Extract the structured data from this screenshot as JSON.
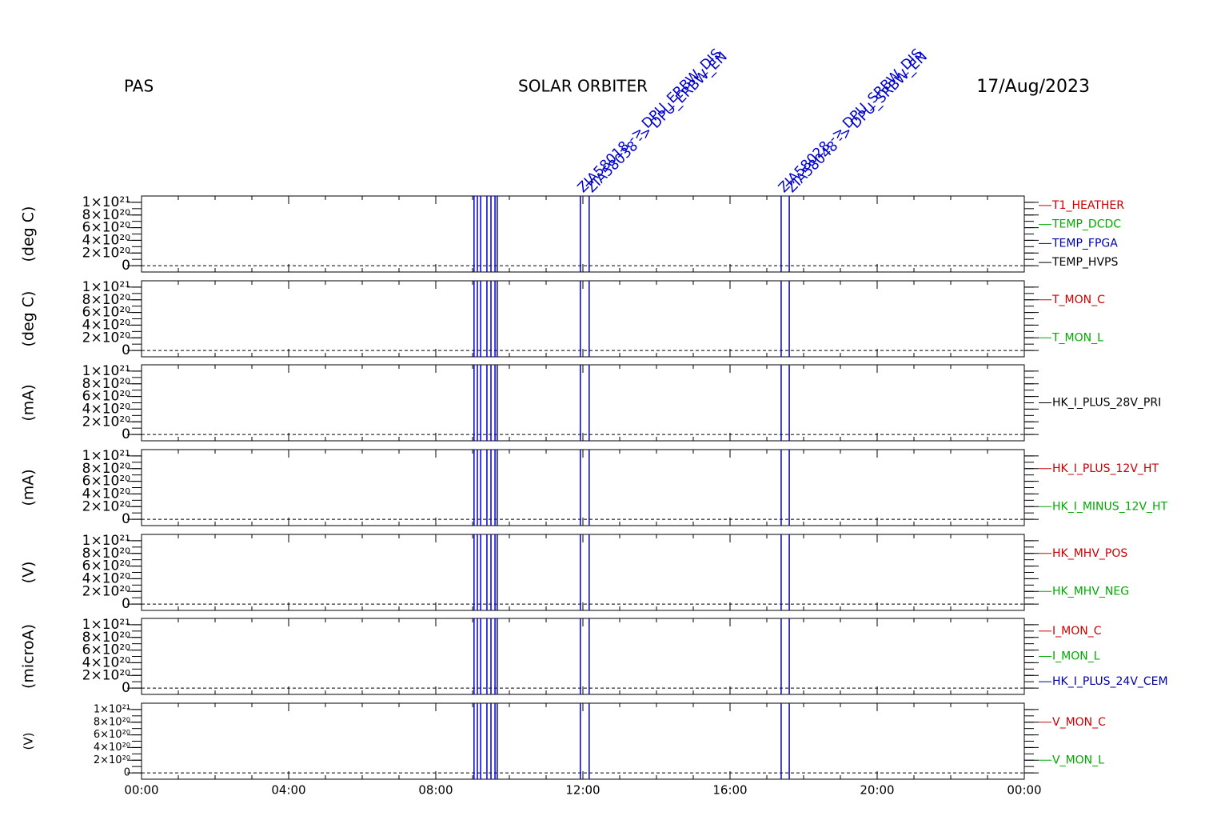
{
  "header": {
    "left": "PAS",
    "center": "SOLAR ORBITER",
    "right": "17/Aug/2023"
  },
  "events": [
    {
      "x": 9.04,
      "label": null
    },
    {
      "x": 9.13,
      "label": null
    },
    {
      "x": 9.22,
      "label": null
    },
    {
      "x": 9.39,
      "label": null
    },
    {
      "x": 9.5,
      "label": null
    },
    {
      "x": 9.61,
      "label": null
    },
    {
      "x": 9.67,
      "label": null
    },
    {
      "x": 11.93,
      "label": "ZIA58018 -> DPU_ERBW_DIS"
    },
    {
      "x": 12.17,
      "label": "ZIA58038 -> DPU_ERBW_EN"
    },
    {
      "x": 17.39,
      "label": "ZIA58028 -> DPU_SRBW_DIS"
    },
    {
      "x": 17.61,
      "label": "ZIA58048 -> DPU_SRBW_EN"
    }
  ],
  "chart_data": [
    {
      "type": "line",
      "ylabel": "(deg C)",
      "xlim": [
        0,
        24
      ],
      "ylim": [
        -1e+20,
        1.1e+21
      ],
      "yticks": [
        {
          "value": 0,
          "label": "0"
        },
        {
          "value": 2e+20,
          "label": "2×10²⁰"
        },
        {
          "value": 4e+20,
          "label": "4×10²⁰"
        },
        {
          "value": 6e+20,
          "label": "6×10²⁰"
        },
        {
          "value": 8e+20,
          "label": "8×10²⁰"
        },
        {
          "value": 1e+21,
          "label": "1×10²¹"
        }
      ],
      "series": [
        {
          "name": "T1_HEATHER",
          "color": "#cc0000"
        },
        {
          "name": "TEMP_DCDC",
          "color": "#00aa00"
        },
        {
          "name": "TEMP_FPGA",
          "color": "#0000aa"
        },
        {
          "name": "TEMP_HVPS",
          "color": "#000000"
        }
      ]
    },
    {
      "type": "line",
      "ylabel": "(deg C)",
      "xlim": [
        0,
        24
      ],
      "ylim": [
        -1e+20,
        1.1e+21
      ],
      "yticks": [
        {
          "value": 0,
          "label": "0"
        },
        {
          "value": 2e+20,
          "label": "2×10²⁰"
        },
        {
          "value": 4e+20,
          "label": "4×10²⁰"
        },
        {
          "value": 6e+20,
          "label": "6×10²⁰"
        },
        {
          "value": 8e+20,
          "label": "8×10²⁰"
        },
        {
          "value": 1e+21,
          "label": "1×10²¹"
        }
      ],
      "series": [
        {
          "name": "T_MON_C",
          "color": "#cc0000"
        },
        {
          "name": "T_MON_L",
          "color": "#00aa00"
        }
      ]
    },
    {
      "type": "line",
      "ylabel": "(mA)",
      "xlim": [
        0,
        24
      ],
      "ylim": [
        -1e+20,
        1.1e+21
      ],
      "yticks": [
        {
          "value": 0,
          "label": "0"
        },
        {
          "value": 2e+20,
          "label": "2×10²⁰"
        },
        {
          "value": 4e+20,
          "label": "4×10²⁰"
        },
        {
          "value": 6e+20,
          "label": "6×10²⁰"
        },
        {
          "value": 8e+20,
          "label": "8×10²⁰"
        },
        {
          "value": 1e+21,
          "label": "1×10²¹"
        }
      ],
      "series": [
        {
          "name": "HK_I_PLUS_28V_PRI",
          "color": "#000000"
        }
      ]
    },
    {
      "type": "line",
      "ylabel": "(mA)",
      "xlim": [
        0,
        24
      ],
      "ylim": [
        -1e+20,
        1.1e+21
      ],
      "yticks": [
        {
          "value": 0,
          "label": "0"
        },
        {
          "value": 2e+20,
          "label": "2×10²⁰"
        },
        {
          "value": 4e+20,
          "label": "4×10²⁰"
        },
        {
          "value": 6e+20,
          "label": "6×10²⁰"
        },
        {
          "value": 8e+20,
          "label": "8×10²⁰"
        },
        {
          "value": 1e+21,
          "label": "1×10²¹"
        }
      ],
      "series": [
        {
          "name": "HK_I_PLUS_12V_HT",
          "color": "#cc0000"
        },
        {
          "name": "HK_I_MINUS_12V_HT",
          "color": "#00aa00"
        }
      ]
    },
    {
      "type": "line",
      "ylabel": "(V)",
      "xlim": [
        0,
        24
      ],
      "ylim": [
        -1e+20,
        1.1e+21
      ],
      "yticks": [
        {
          "value": 0,
          "label": "0"
        },
        {
          "value": 2e+20,
          "label": "2×10²⁰"
        },
        {
          "value": 4e+20,
          "label": "4×10²⁰"
        },
        {
          "value": 6e+20,
          "label": "6×10²⁰"
        },
        {
          "value": 8e+20,
          "label": "8×10²⁰"
        },
        {
          "value": 1e+21,
          "label": "1×10²¹"
        }
      ],
      "series": [
        {
          "name": "HK_MHV_POS",
          "color": "#cc0000"
        },
        {
          "name": "HK_MHV_NEG",
          "color": "#00aa00"
        }
      ]
    },
    {
      "type": "line",
      "ylabel": "(microA)",
      "xlim": [
        0,
        24
      ],
      "ylim": [
        -1e+20,
        1.1e+21
      ],
      "yticks": [
        {
          "value": 0,
          "label": "0"
        },
        {
          "value": 2e+20,
          "label": "2×10²⁰"
        },
        {
          "value": 4e+20,
          "label": "4×10²⁰"
        },
        {
          "value": 6e+20,
          "label": "6×10²⁰"
        },
        {
          "value": 8e+20,
          "label": "8×10²⁰"
        },
        {
          "value": 1e+21,
          "label": "1×10²¹"
        }
      ],
      "series": [
        {
          "name": "I_MON_C",
          "color": "#cc0000"
        },
        {
          "name": "I_MON_L",
          "color": "#00aa00"
        },
        {
          "name": "HK_I_PLUS_24V_CEM",
          "color": "#0000aa"
        }
      ]
    },
    {
      "type": "line",
      "ylabel": "(V)",
      "xlim": [
        0,
        24
      ],
      "ylim": [
        -1e+20,
        1.1e+21
      ],
      "yticks": [
        {
          "value": 0,
          "label": "0"
        },
        {
          "value": 2e+20,
          "label": "2×10²⁰"
        },
        {
          "value": 4e+20,
          "label": "4×10²⁰"
        },
        {
          "value": 6e+20,
          "label": "6×10²⁰"
        },
        {
          "value": 8e+20,
          "label": "8×10²⁰"
        },
        {
          "value": 1e+21,
          "label": "1×10²¹"
        }
      ],
      "series": [
        {
          "name": "V_MON_C",
          "color": "#cc0000"
        },
        {
          "name": "V_MON_L",
          "color": "#00aa00"
        }
      ],
      "xticks": [
        {
          "value": 0,
          "label": "00:00"
        },
        {
          "value": 4,
          "label": "04:00"
        },
        {
          "value": 8,
          "label": "08:00"
        },
        {
          "value": 12,
          "label": "12:00"
        },
        {
          "value": 16,
          "label": "16:00"
        },
        {
          "value": 20,
          "label": "20:00"
        },
        {
          "value": 24,
          "label": "00:00"
        }
      ]
    }
  ]
}
